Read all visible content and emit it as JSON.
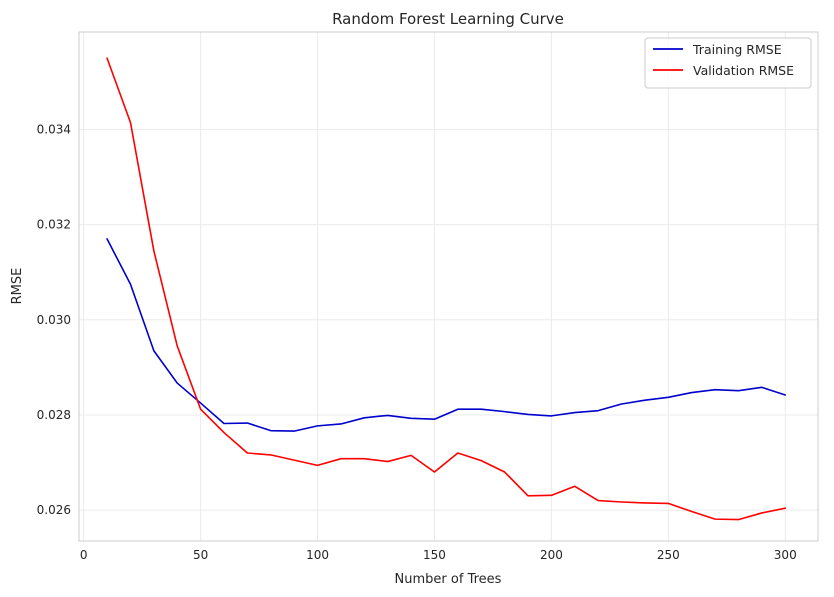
{
  "chart_data": {
    "type": "line",
    "title": "Random Forest Learning Curve",
    "xlabel": "Number of Trees",
    "ylabel": "RMSE",
    "xlim": [
      -2,
      314
    ],
    "ylim": [
      0.02535,
      0.03605
    ],
    "xticks": [
      0,
      50,
      100,
      150,
      200,
      250,
      300
    ],
    "yticks": [
      0.026,
      0.028,
      0.03,
      0.032,
      0.034
    ],
    "ytick_labels": [
      "0.026",
      "0.028",
      "0.030",
      "0.032",
      "0.034"
    ],
    "grid": true,
    "legend_position": "top-right",
    "x": [
      10,
      20,
      30,
      40,
      50,
      60,
      70,
      80,
      90,
      100,
      110,
      120,
      130,
      140,
      150,
      160,
      170,
      180,
      190,
      200,
      210,
      220,
      230,
      240,
      250,
      260,
      270,
      280,
      290,
      300
    ],
    "series": [
      {
        "name": "Training RMSE",
        "color": "#0000cc",
        "values": [
          0.0317,
          0.03075,
          0.02935,
          0.02867,
          0.02825,
          0.02782,
          0.02783,
          0.02767,
          0.02766,
          0.02777,
          0.02781,
          0.02794,
          0.02799,
          0.02793,
          0.02791,
          0.02812,
          0.02812,
          0.02807,
          0.02801,
          0.02798,
          0.02805,
          0.02809,
          0.02823,
          0.02831,
          0.02837,
          0.02847,
          0.02853,
          0.02851,
          0.02858,
          0.02842
        ]
      },
      {
        "name": "Validation RMSE",
        "color": "#ff0000",
        "values": [
          0.0355,
          0.03415,
          0.03145,
          0.02945,
          0.02812,
          0.02763,
          0.0272,
          0.02716,
          0.02705,
          0.02694,
          0.02708,
          0.02708,
          0.02702,
          0.02715,
          0.0268,
          0.0272,
          0.02704,
          0.0268,
          0.0263,
          0.02631,
          0.0265,
          0.0262,
          0.02617,
          0.02615,
          0.02614,
          0.02597,
          0.02581,
          0.0258,
          0.02594,
          0.02604
        ]
      }
    ]
  }
}
